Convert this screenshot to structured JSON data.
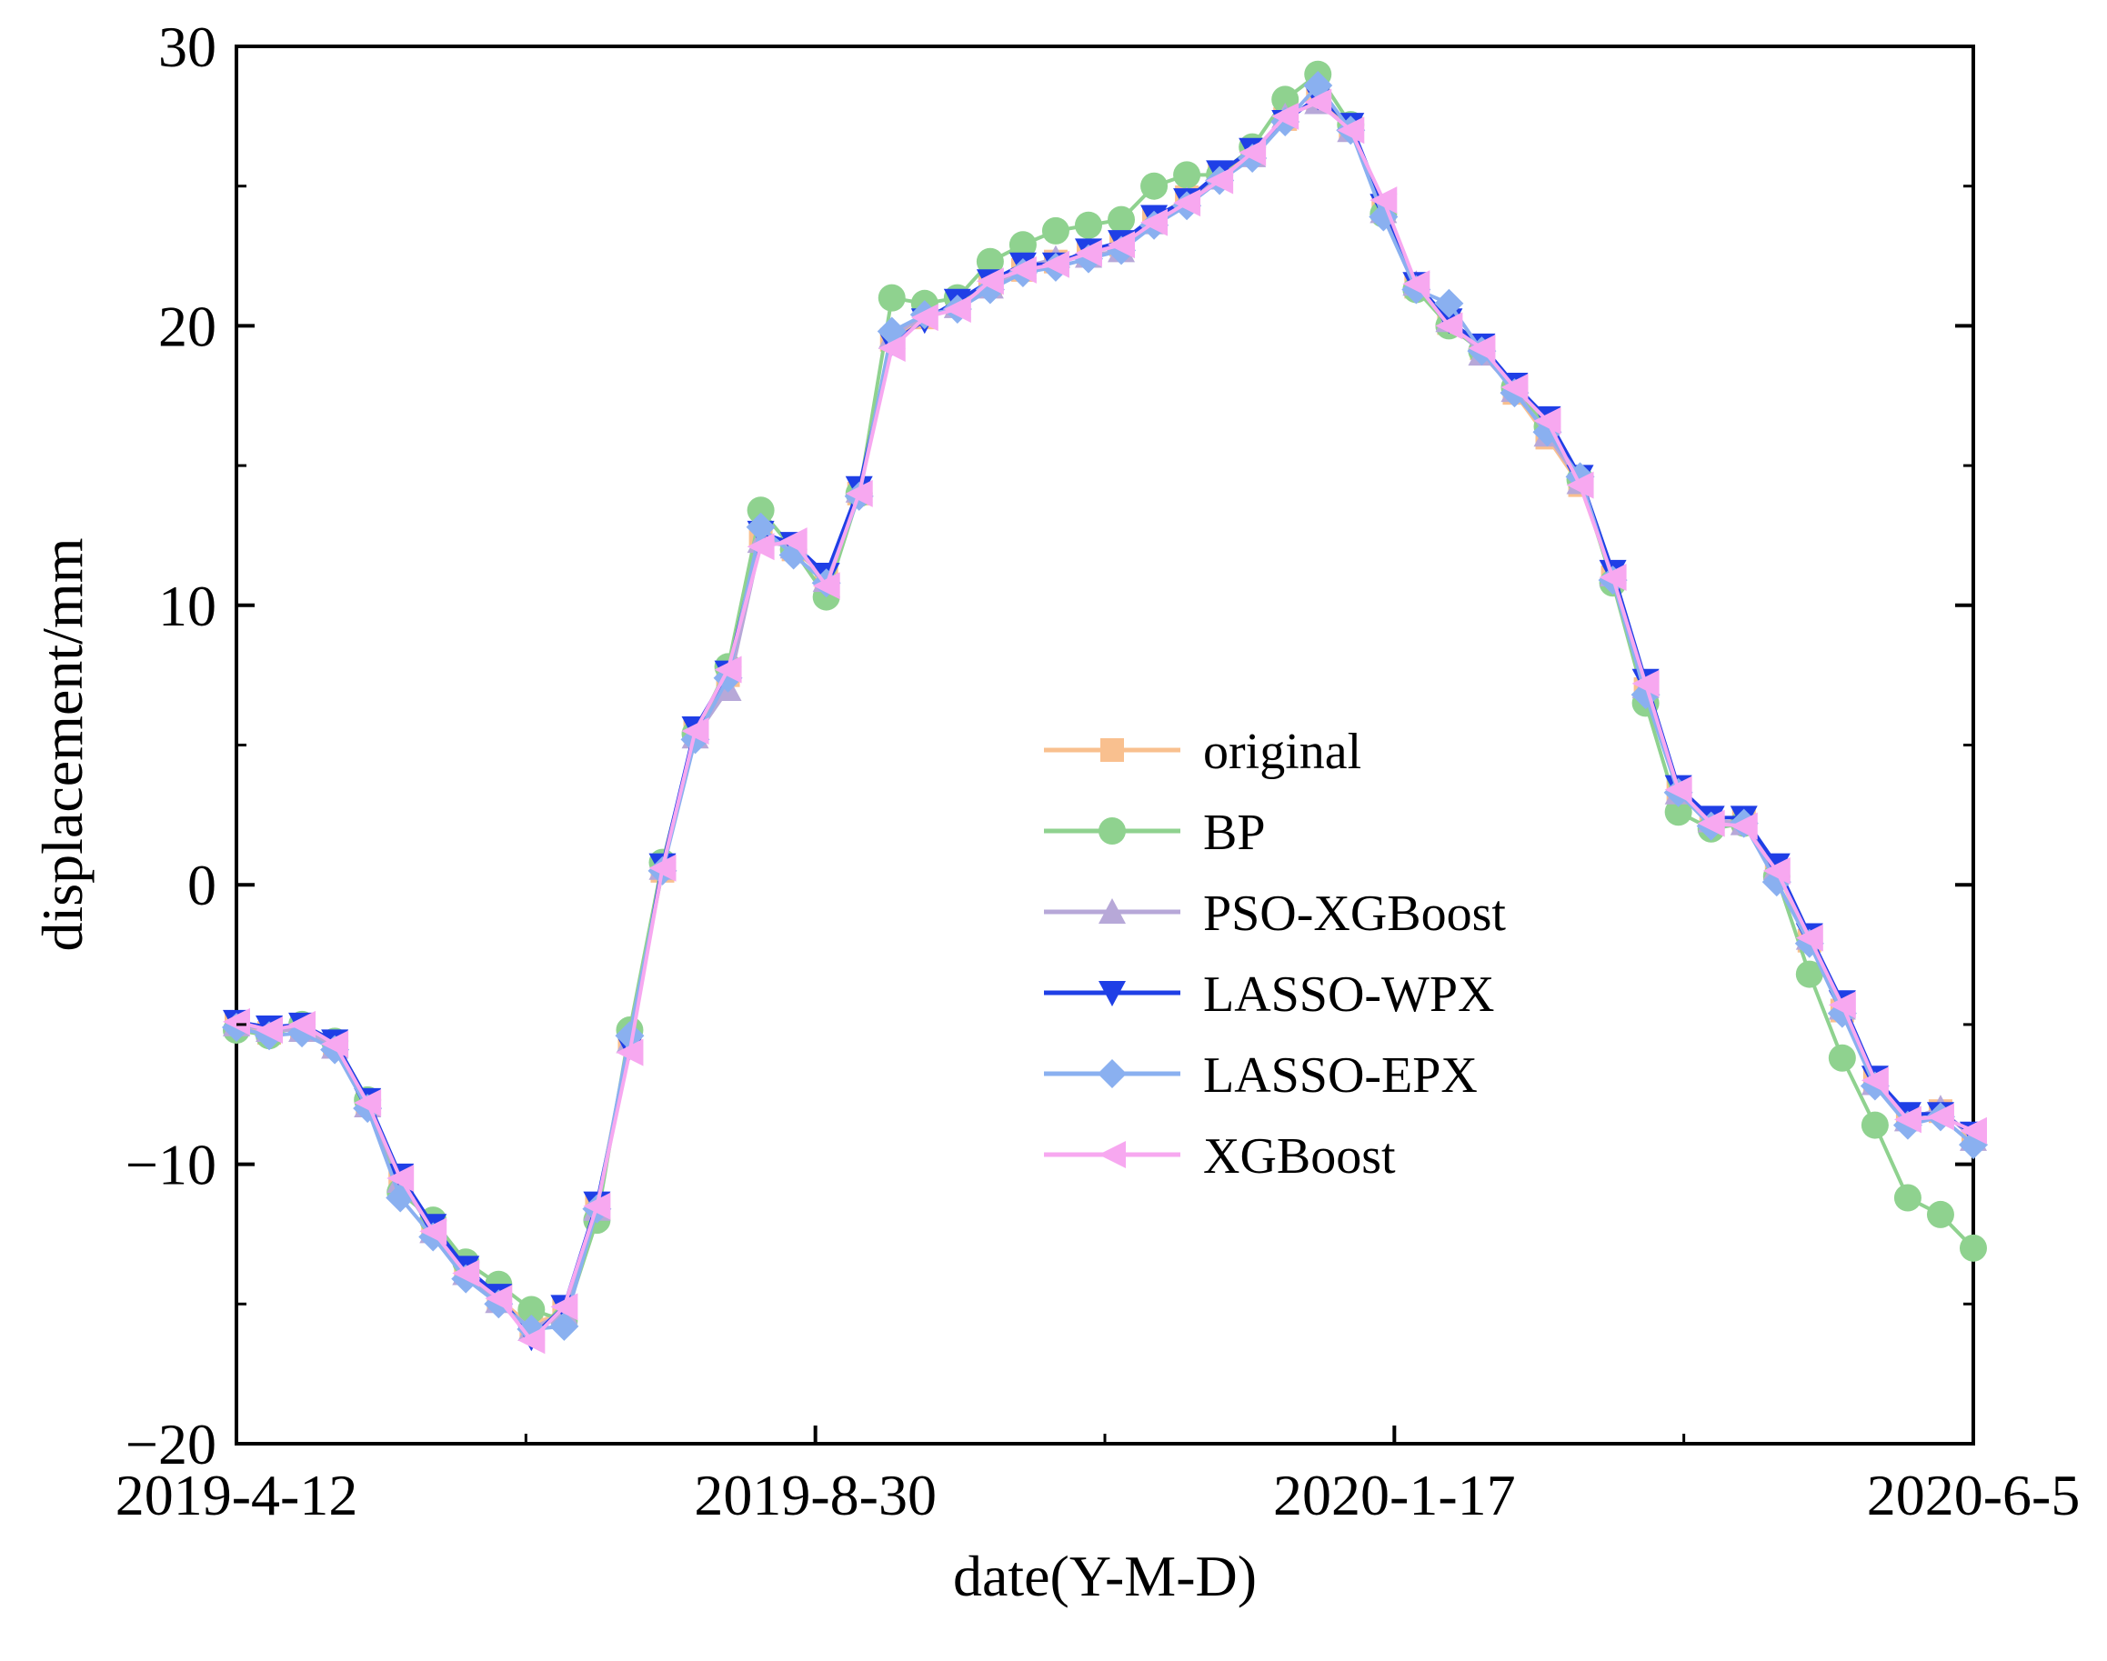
{
  "chart_data": {
    "type": "line",
    "title": "",
    "xlabel": "date(Y-M-D)",
    "ylabel": "displacement/mm",
    "ylim": [
      -20,
      30
    ],
    "xlim": [
      0,
      60
    ],
    "yticks": [
      -20,
      -10,
      0,
      10,
      20,
      30
    ],
    "ytick_labels": [
      "−20",
      "−10",
      "0",
      "10",
      "20",
      "30"
    ],
    "xticks": [
      0,
      20,
      40,
      60
    ],
    "xtick_labels": [
      "2019-4-12",
      "2019-8-30",
      "2020-1-17",
      "2020-6-5"
    ],
    "legend_position": "center-right",
    "series": [
      {
        "name": "original",
        "color": "#F9C08F",
        "marker": "square",
        "values": [
          -5.0,
          -5.3,
          -5.1,
          -5.7,
          -7.8,
          -10.5,
          -12.3,
          -13.8,
          -14.8,
          -15.8,
          -15.2,
          -11.5,
          -5.5,
          0.5,
          5.5,
          7.5,
          12.5,
          12.0,
          11.0,
          14.0,
          19.5,
          20.3,
          20.8,
          21.5,
          22.0,
          22.3,
          22.6,
          22.9,
          23.8,
          24.6,
          25.4,
          26.2,
          27.4,
          28.1,
          27.1,
          24.2,
          21.4,
          20.1,
          19.2,
          17.6,
          16.0,
          14.3,
          11.0,
          7.0,
          3.4,
          2.2,
          2.3,
          0.5,
          -2.0,
          -4.5,
          -7.0,
          -8.3,
          -8.1,
          -9.0
        ]
      },
      {
        "name": "BP",
        "color": "#8FD28F",
        "marker": "circle",
        "values": [
          -5.2,
          -5.4,
          -5.0,
          -5.6,
          -7.7,
          -11.0,
          -12.0,
          -13.5,
          -14.3,
          -15.2,
          -15.6,
          -12.0,
          -5.2,
          0.8,
          5.4,
          7.8,
          13.4,
          12.0,
          10.3,
          14.0,
          21.0,
          20.8,
          21.0,
          22.3,
          22.9,
          23.4,
          23.6,
          23.8,
          25.0,
          25.4,
          25.4,
          26.4,
          28.1,
          29.0,
          27.2,
          24.0,
          21.3,
          20.0,
          19.1,
          17.8,
          16.4,
          14.5,
          10.8,
          6.5,
          2.6,
          2.0,
          2.2,
          0.3,
          -3.2,
          -6.2,
          -8.6,
          -11.2,
          -11.8,
          -13.0
        ]
      },
      {
        "name": "PSO-XGBoost",
        "color": "#B7A8D8",
        "marker": "triangle-up",
        "values": [
          -5.0,
          -5.2,
          -5.2,
          -5.8,
          -7.9,
          -10.6,
          -12.4,
          -13.9,
          -14.9,
          -15.9,
          -15.3,
          -11.6,
          -5.6,
          0.6,
          5.3,
          7.0,
          12.3,
          12.1,
          10.9,
          14.1,
          19.6,
          20.4,
          20.7,
          21.4,
          22.1,
          22.4,
          22.5,
          22.7,
          23.7,
          24.5,
          25.3,
          26.1,
          27.5,
          28.0,
          27.0,
          24.1,
          21.5,
          20.2,
          19.0,
          17.7,
          16.1,
          14.4,
          11.1,
          7.1,
          3.3,
          2.3,
          2.2,
          0.6,
          -1.9,
          -4.4,
          -7.1,
          -8.4,
          -8.0,
          -9.1
        ]
      },
      {
        "name": "LASSO-WPX",
        "color": "#1F3FE6",
        "marker": "triangle-down",
        "values": [
          -4.9,
          -5.1,
          -5.0,
          -5.6,
          -7.7,
          -10.4,
          -12.2,
          -13.7,
          -14.7,
          -16.2,
          -15.1,
          -11.4,
          -5.8,
          0.7,
          5.6,
          7.6,
          12.6,
          12.2,
          11.1,
          14.2,
          19.4,
          20.2,
          20.9,
          21.6,
          22.2,
          22.2,
          22.7,
          23.0,
          23.9,
          24.5,
          25.5,
          26.3,
          27.3,
          28.2,
          27.2,
          24.3,
          21.5,
          20.2,
          19.3,
          17.9,
          16.7,
          14.6,
          11.2,
          7.3,
          3.5,
          2.4,
          2.4,
          0.7,
          -1.8,
          -4.2,
          -6.9,
          -8.2,
          -8.2,
          -8.9
        ]
      },
      {
        "name": "LASSO-EPX",
        "color": "#8AB0F0",
        "marker": "diamond",
        "values": [
          -5.1,
          -5.4,
          -5.3,
          -5.9,
          -8.0,
          -11.2,
          -12.6,
          -14.1,
          -15.0,
          -15.9,
          -15.8,
          -11.6,
          -5.4,
          0.5,
          5.2,
          7.4,
          12.8,
          11.8,
          10.8,
          13.9,
          19.8,
          20.4,
          20.6,
          21.3,
          21.9,
          22.1,
          22.4,
          22.7,
          23.6,
          24.3,
          25.2,
          26.0,
          27.3,
          28.6,
          27.0,
          23.9,
          21.3,
          20.8,
          19.1,
          17.6,
          16.2,
          14.6,
          10.9,
          6.8,
          3.3,
          2.1,
          2.2,
          0.1,
          -2.1,
          -4.6,
          -7.2,
          -8.6,
          -8.3,
          -9.3
        ]
      },
      {
        "name": "XGBoost",
        "color": "#F7A8F0",
        "marker": "triangle-left",
        "values": [
          -4.9,
          -5.2,
          -5.0,
          -5.7,
          -7.8,
          -10.5,
          -12.4,
          -13.9,
          -14.8,
          -16.3,
          -15.1,
          -11.5,
          -6.0,
          0.6,
          5.5,
          7.7,
          12.1,
          12.3,
          10.7,
          14.0,
          19.2,
          20.3,
          20.6,
          21.6,
          22.0,
          22.2,
          22.6,
          22.9,
          23.7,
          24.4,
          25.2,
          26.2,
          27.5,
          28.0,
          27.0,
          24.5,
          21.5,
          20.0,
          19.2,
          17.8,
          16.6,
          14.3,
          11.0,
          7.2,
          3.4,
          2.2,
          2.1,
          0.5,
          -1.9,
          -4.3,
          -7.0,
          -8.4,
          -8.3,
          -8.8
        ]
      }
    ]
  }
}
